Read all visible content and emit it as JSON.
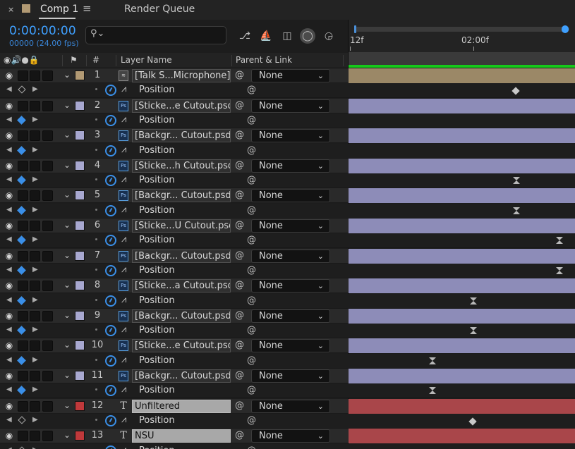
{
  "tabs": {
    "close_glyph": "×",
    "comp_title": "Comp 1",
    "menu_glyph": "≡",
    "render_queue": "Render Queue",
    "comp_color": "#b29a74"
  },
  "header": {
    "timecode": "0:00:00:00",
    "frames": "00000 (24.00 fps)",
    "search_placeholder": "",
    "search_icon": "search-icon"
  },
  "columns": {
    "layer_name": "Layer Name",
    "parent_link": "Parent & Link",
    "number": "#"
  },
  "ruler": {
    "start_label": "12f",
    "mid_label": "02:00f"
  },
  "colors": {
    "accent": "#3fa0ff",
    "tan": "#9b8867",
    "lavender": "#8d8cb8",
    "red": "#a9464a",
    "work_area": "#16c91a"
  },
  "layers": [
    {
      "num": "1",
      "name": "[Talk S...Microphone]",
      "parent": "None",
      "label": "#b29a74",
      "type": "av",
      "bar": "tan",
      "keyframe_style": "diamond",
      "kf_pos": 0.74,
      "light": false,
      "keyed": false
    },
    {
      "num": "2",
      "name": "[Sticke...e Cutout.psd]",
      "parent": "None",
      "label": "#a8a8d0",
      "type": "psd",
      "bar": "lav",
      "keyframe_style": "none",
      "light": false,
      "keyed": true
    },
    {
      "num": "3",
      "name": "[Backgr... Cutout.psd]",
      "parent": "None",
      "label": "#a8a8d0",
      "type": "psd",
      "bar": "lav",
      "keyframe_style": "none",
      "light": false,
      "keyed": true
    },
    {
      "num": "4",
      "name": "[Sticke...h Cutout.psd]",
      "parent": "None",
      "label": "#a8a8d0",
      "type": "psd",
      "bar": "lav",
      "keyframe_style": "hour",
      "kf_pos": 0.74,
      "light": false,
      "keyed": true
    },
    {
      "num": "5",
      "name": "[Backgr... Cutout.psd]",
      "parent": "None",
      "label": "#a8a8d0",
      "type": "psd",
      "bar": "lav",
      "keyframe_style": "hour",
      "kf_pos": 0.74,
      "light": false,
      "keyed": true
    },
    {
      "num": "6",
      "name": "[Sticke...U Cutout.psd]",
      "parent": "None",
      "label": "#a8a8d0",
      "type": "psd",
      "bar": "lav",
      "keyframe_style": "hour",
      "kf_pos": 0.93,
      "light": false,
      "keyed": true
    },
    {
      "num": "7",
      "name": "[Backgr... Cutout.psd]",
      "parent": "None",
      "label": "#a8a8d0",
      "type": "psd",
      "bar": "lav",
      "keyframe_style": "hour",
      "kf_pos": 0.93,
      "light": false,
      "keyed": true
    },
    {
      "num": "8",
      "name": "[Sticke...a Cutout.psd]",
      "parent": "None",
      "label": "#a8a8d0",
      "type": "psd",
      "bar": "lav",
      "keyframe_style": "hour",
      "kf_pos": 0.55,
      "light": false,
      "keyed": true
    },
    {
      "num": "9",
      "name": "[Backgr... Cutout.psd]",
      "parent": "None",
      "label": "#a8a8d0",
      "type": "psd",
      "bar": "lav",
      "keyframe_style": "hour",
      "kf_pos": 0.55,
      "light": false,
      "keyed": true
    },
    {
      "num": "10",
      "name": "[Sticke...e Cutout.psd]",
      "parent": "None",
      "label": "#a8a8d0",
      "type": "psd",
      "bar": "lav",
      "keyframe_style": "hour",
      "kf_pos": 0.37,
      "light": false,
      "keyed": true
    },
    {
      "num": "11",
      "name": "[Backgr... Cutout.psd]",
      "parent": "None",
      "label": "#a8a8d0",
      "type": "psd",
      "bar": "lav",
      "keyframe_style": "hour",
      "kf_pos": 0.37,
      "light": false,
      "keyed": true
    },
    {
      "num": "12",
      "name": "Unfiltered",
      "parent": "None",
      "label": "#c0393b",
      "type": "text",
      "bar": "red",
      "keyframe_style": "diamond",
      "kf_pos": 0.55,
      "light": true,
      "keyed": false
    },
    {
      "num": "13",
      "name": "NSU",
      "parent": "None",
      "label": "#c0393b",
      "type": "text",
      "bar": "red",
      "keyframe_style": "none",
      "light": true,
      "keyed": false
    }
  ],
  "property_name": "Position",
  "type_glyphs": {
    "av": "≋",
    "psd": "Ps",
    "text": "T"
  },
  "glyphs": {
    "eye": "◉",
    "twirl": "⌄",
    "spiral": "@",
    "graph": "⩘",
    "prev": "◀",
    "next": "▶",
    "caret": "⌄"
  }
}
